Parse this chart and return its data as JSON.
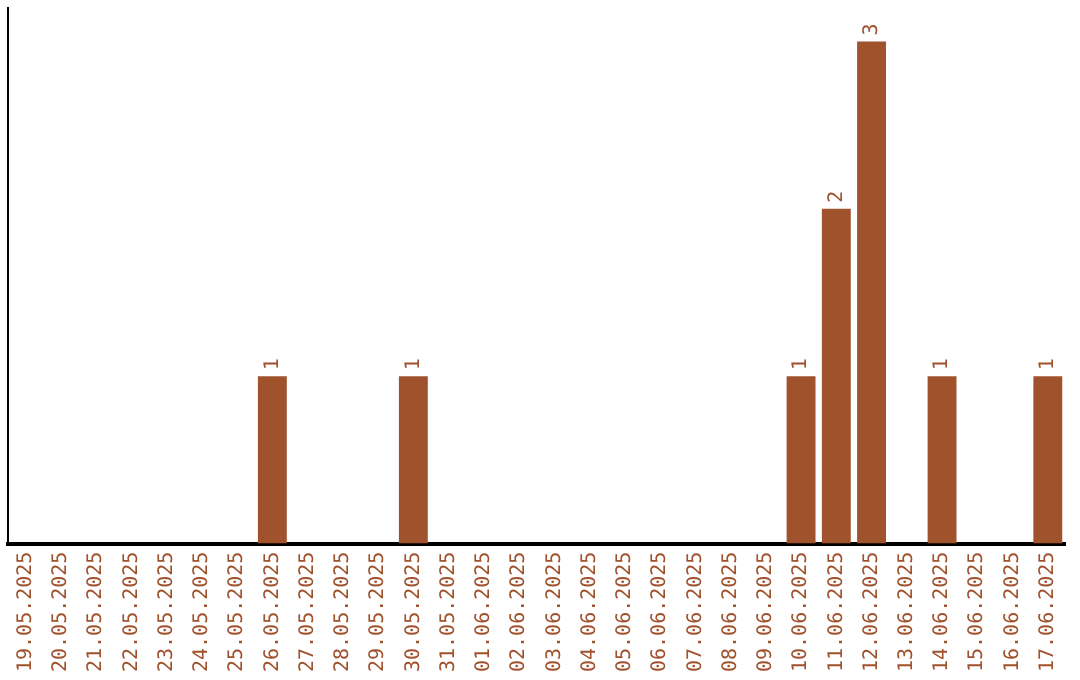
{
  "chart_data": {
    "type": "bar",
    "categories": [
      "19.05.2025",
      "20.05.2025",
      "21.05.2025",
      "22.05.2025",
      "23.05.2025",
      "24.05.2025",
      "25.05.2025",
      "26.05.2025",
      "27.05.2025",
      "28.05.2025",
      "29.05.2025",
      "30.05.2025",
      "31.05.2025",
      "01.06.2025",
      "02.06.2025",
      "03.06.2025",
      "04.06.2025",
      "05.06.2025",
      "06.06.2025",
      "07.06.2025",
      "08.06.2025",
      "09.06.2025",
      "10.06.2025",
      "11.06.2025",
      "12.06.2025",
      "13.06.2025",
      "14.06.2025",
      "15.06.2025",
      "16.06.2025",
      "17.06.2025"
    ],
    "values": [
      0,
      0,
      0,
      0,
      0,
      0,
      0,
      1,
      0,
      0,
      0,
      1,
      0,
      0,
      0,
      0,
      0,
      0,
      0,
      0,
      0,
      0,
      1,
      2,
      3,
      0,
      1,
      0,
      0,
      1
    ],
    "value_labels": [
      null,
      null,
      null,
      null,
      null,
      null,
      null,
      "1",
      null,
      null,
      null,
      "1",
      null,
      null,
      null,
      null,
      null,
      null,
      null,
      null,
      null,
      null,
      "1",
      "2",
      "3",
      null,
      "1",
      null,
      null,
      "1"
    ],
    "color": "#a0522d",
    "ylim": [
      0,
      3.2
    ],
    "tick_labels": "x",
    "grid": false,
    "legend": false
  }
}
